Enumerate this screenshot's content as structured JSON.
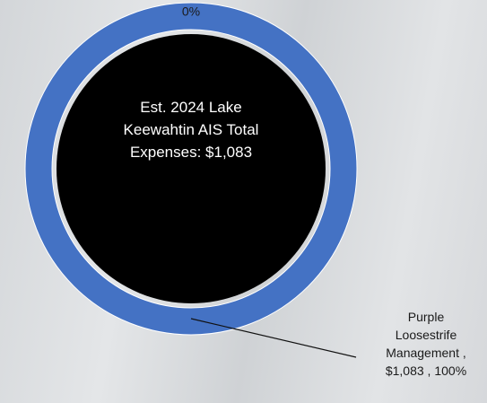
{
  "chart_data": {
    "type": "donut",
    "center_text": "Est. 2024 Lake Keewahtin AIS Total Expenses: $1,083",
    "categories": [
      null,
      "Purple Loosestrife Management ,"
    ],
    "values": [
      0,
      1083
    ],
    "value_labels": [
      "0%",
      "$1,083 , 100%"
    ],
    "colors": [
      "#4472c4",
      "#4472c4"
    ],
    "hole_color": "#000000"
  }
}
